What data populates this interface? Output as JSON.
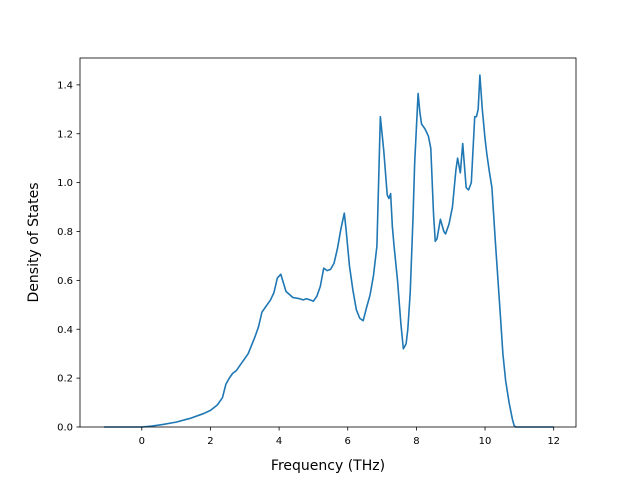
{
  "chart_data": {
    "type": "line",
    "title": "",
    "xlabel": "Frequency (THz)",
    "ylabel": "Density of States",
    "xlim": [
      -1.8,
      12.65
    ],
    "ylim": [
      0.0,
      1.51
    ],
    "xticks": [
      0,
      2,
      4,
      6,
      8,
      10,
      12
    ],
    "yticks": [
      0.0,
      0.2,
      0.4,
      0.6,
      0.8,
      1.0,
      1.2,
      1.4
    ],
    "xtick_labels": [
      "0",
      "2",
      "4",
      "6",
      "8",
      "10",
      "12"
    ],
    "ytick_labels": [
      "0.0",
      "0.2",
      "0.4",
      "0.6",
      "0.8",
      "1.0",
      "1.2",
      "1.4"
    ],
    "grid": false,
    "legend": null,
    "series": [
      {
        "color": "#1f77b4",
        "x": [
          -1.1,
          -0.5,
          0.0,
          0.3,
          0.6,
          1.0,
          1.4,
          1.8,
          2.0,
          2.2,
          2.35,
          2.45,
          2.55,
          2.65,
          2.75,
          2.9,
          3.1,
          3.3,
          3.4,
          3.5,
          3.6,
          3.75,
          3.85,
          3.95,
          4.05,
          4.2,
          4.4,
          4.6,
          4.7,
          4.8,
          4.9,
          5.0,
          5.1,
          5.2,
          5.3,
          5.4,
          5.5,
          5.6,
          5.7,
          5.8,
          5.9,
          5.95,
          6.05,
          6.15,
          6.25,
          6.35,
          6.45,
          6.55,
          6.65,
          6.75,
          6.85,
          6.95,
          7.05,
          7.15,
          7.2,
          7.25,
          7.3,
          7.35,
          7.45,
          7.55,
          7.62,
          7.7,
          7.75,
          7.82,
          7.9,
          7.95,
          8.05,
          8.1,
          8.15,
          8.25,
          8.35,
          8.42,
          8.5,
          8.55,
          8.6,
          8.7,
          8.8,
          8.85,
          8.95,
          9.05,
          9.15,
          9.2,
          9.28,
          9.35,
          9.4,
          9.45,
          9.52,
          9.6,
          9.7,
          9.75,
          9.8,
          9.85,
          9.92,
          10.0,
          10.05,
          10.12,
          10.2,
          10.3,
          10.45,
          10.52,
          10.6,
          10.7,
          10.8,
          10.85,
          10.9,
          10.95,
          11.2,
          11.6,
          12.0
        ],
        "y": [
          0.0,
          0.0,
          0.0,
          0.004,
          0.01,
          0.02,
          0.035,
          0.055,
          0.068,
          0.09,
          0.12,
          0.175,
          0.2,
          0.22,
          0.23,
          0.26,
          0.3,
          0.37,
          0.41,
          0.47,
          0.49,
          0.52,
          0.55,
          0.61,
          0.625,
          0.555,
          0.53,
          0.525,
          0.52,
          0.525,
          0.52,
          0.515,
          0.535,
          0.575,
          0.65,
          0.64,
          0.645,
          0.67,
          0.73,
          0.81,
          0.875,
          0.81,
          0.66,
          0.56,
          0.48,
          0.445,
          0.435,
          0.49,
          0.54,
          0.62,
          0.74,
          1.27,
          1.13,
          0.95,
          0.935,
          0.955,
          0.82,
          0.74,
          0.6,
          0.42,
          0.32,
          0.34,
          0.4,
          0.55,
          0.85,
          1.08,
          1.365,
          1.29,
          1.24,
          1.22,
          1.19,
          1.14,
          0.87,
          0.76,
          0.77,
          0.85,
          0.8,
          0.79,
          0.83,
          0.9,
          1.05,
          1.1,
          1.04,
          1.16,
          1.07,
          0.98,
          0.97,
          1.0,
          1.27,
          1.27,
          1.3,
          1.44,
          1.3,
          1.18,
          1.12,
          1.05,
          0.98,
          0.76,
          0.45,
          0.3,
          0.19,
          0.1,
          0.03,
          0.005,
          0.0,
          0.0,
          0.0,
          0.0,
          0.0
        ]
      }
    ]
  }
}
